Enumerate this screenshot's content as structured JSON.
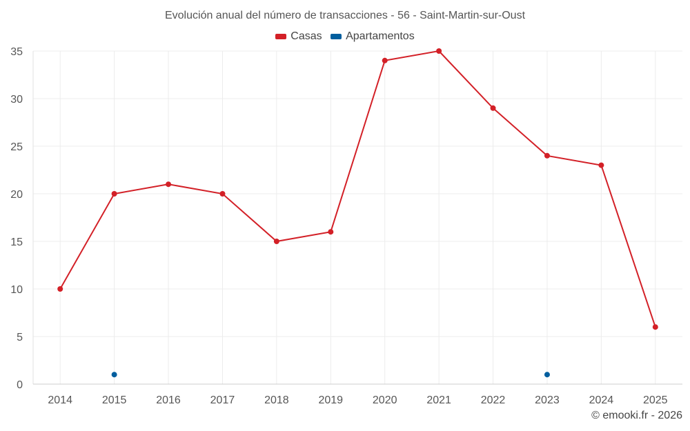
{
  "chart_data": {
    "type": "line",
    "title": "Evolución anual del número de transacciones - 56 - Saint-Martin-sur-Oust",
    "categories": [
      "2014",
      "2015",
      "2016",
      "2017",
      "2018",
      "2019",
      "2020",
      "2021",
      "2022",
      "2023",
      "2024",
      "2025"
    ],
    "series": [
      {
        "name": "Casas",
        "color": "#d32027",
        "values": [
          10,
          20,
          21,
          20,
          15,
          16,
          34,
          35,
          29,
          24,
          23,
          6
        ]
      },
      {
        "name": "Apartamentos",
        "color": "#005e9e",
        "values": [
          null,
          1,
          null,
          null,
          null,
          null,
          null,
          null,
          null,
          1,
          null,
          null
        ]
      }
    ],
    "yticks": [
      "0",
      "5",
      "10",
      "15",
      "20",
      "25",
      "30",
      "35"
    ],
    "ylim": [
      0,
      35
    ],
    "grid": true,
    "legend_position": "top-center",
    "xlabel": "",
    "ylabel": ""
  },
  "credit": "© emooki.fr - 2026"
}
